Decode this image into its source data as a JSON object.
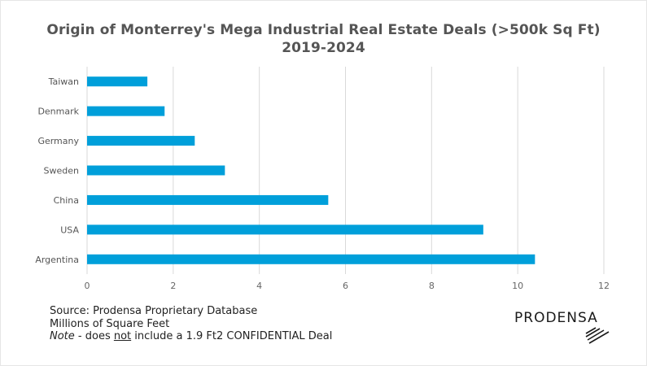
{
  "chart_data": {
    "type": "bar",
    "orientation": "horizontal",
    "title": "Origin of Monterrey's Mega Industrial Real Estate Deals (>500k Sq Ft)",
    "subtitle": "2019-2024",
    "xlabel": "",
    "ylabel": "",
    "categories": [
      "Taiwan",
      "Denmark",
      "Germany",
      "Sweden",
      "China",
      "USA",
      "Argentina"
    ],
    "values": [
      1.4,
      1.8,
      2.5,
      3.2,
      5.6,
      9.2,
      10.4
    ],
    "xlim": [
      0,
      12
    ],
    "xticks": [
      0,
      2,
      4,
      6,
      8,
      10,
      12
    ],
    "grid": "vertical",
    "legend": "none",
    "bar_color": "#009FDA"
  },
  "footnotes": {
    "source": "Source: Prodensa Proprietary Database",
    "units": "Millions of Square Feet",
    "note_label": "Note",
    "note_sep": " - does ",
    "note_emph": "not",
    "note_rest": " include a 1.9 Ft2 CONFIDENTIAL Deal"
  },
  "logo": {
    "text": "PRODENSA"
  }
}
